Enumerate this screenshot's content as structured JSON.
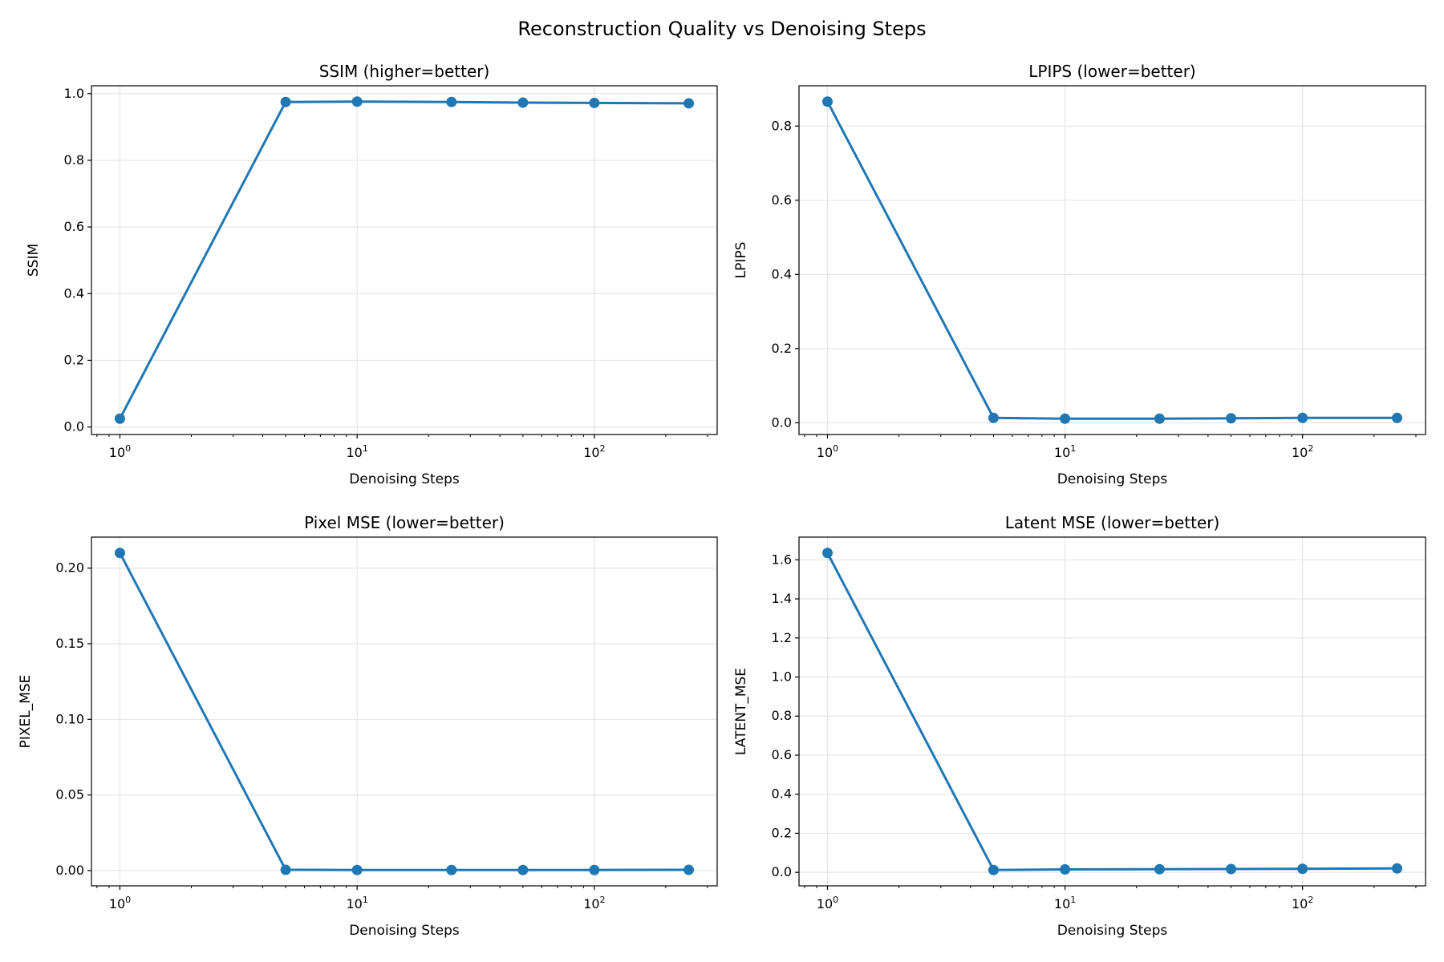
{
  "figure": {
    "title": "Reconstruction Quality vs Denoising Steps"
  },
  "colors": {
    "series": "#1f77b4",
    "grid": "#e5e5e5",
    "axes": "#000000"
  },
  "chart_data": [
    {
      "type": "line",
      "title": "SSIM (higher=better)",
      "xlabel": "Denoising Steps",
      "ylabel": "SSIM",
      "xscale": "log",
      "x": [
        1,
        5,
        10,
        25,
        50,
        100,
        250
      ],
      "values": [
        0.025,
        0.975,
        0.976,
        0.975,
        0.973,
        0.972,
        0.971
      ],
      "yticks": [
        0.0,
        0.2,
        0.4,
        0.6,
        0.8,
        1.0
      ],
      "ytick_labels": [
        "0.0",
        "0.2",
        "0.4",
        "0.6",
        "0.8",
        "1.0"
      ],
      "xticks": [
        1,
        10,
        100
      ],
      "xtick_labels": [
        "10^0",
        "10^1",
        "10^2"
      ],
      "grid": true,
      "marker": "circle"
    },
    {
      "type": "line",
      "title": "LPIPS (lower=better)",
      "xlabel": "Denoising Steps",
      "ylabel": "LPIPS",
      "xscale": "log",
      "x": [
        1,
        5,
        10,
        25,
        50,
        100,
        250
      ],
      "values": [
        0.866,
        0.013,
        0.011,
        0.011,
        0.012,
        0.013,
        0.013
      ],
      "yticks": [
        0.0,
        0.2,
        0.4,
        0.6,
        0.8
      ],
      "ytick_labels": [
        "0.0",
        "0.2",
        "0.4",
        "0.6",
        "0.8"
      ],
      "xticks": [
        1,
        10,
        100
      ],
      "xtick_labels": [
        "10^0",
        "10^1",
        "10^2"
      ],
      "grid": true,
      "marker": "circle"
    },
    {
      "type": "line",
      "title": "Pixel MSE (lower=better)",
      "xlabel": "Denoising Steps",
      "ylabel": "PIXEL_MSE",
      "xscale": "log",
      "x": [
        1,
        5,
        10,
        25,
        50,
        100,
        250
      ],
      "values": [
        0.21,
        0.0005,
        0.0004,
        0.0004,
        0.0004,
        0.0004,
        0.0005
      ],
      "yticks": [
        0.0,
        0.05,
        0.1,
        0.15,
        0.2
      ],
      "ytick_labels": [
        "0.00",
        "0.05",
        "0.10",
        "0.15",
        "0.20"
      ],
      "xticks": [
        1,
        10,
        100
      ],
      "xtick_labels": [
        "10^0",
        "10^1",
        "10^2"
      ],
      "grid": true,
      "marker": "circle"
    },
    {
      "type": "line",
      "title": "Latent MSE (lower=better)",
      "xlabel": "Denoising Steps",
      "ylabel": "LATENT_MSE",
      "xscale": "log",
      "x": [
        1,
        5,
        10,
        25,
        50,
        100,
        250
      ],
      "values": [
        1.635,
        0.012,
        0.015,
        0.016,
        0.017,
        0.018,
        0.02
      ],
      "yticks": [
        0.0,
        0.2,
        0.4,
        0.6,
        0.8,
        1.0,
        1.2,
        1.4,
        1.6
      ],
      "ytick_labels": [
        "0.0",
        "0.2",
        "0.4",
        "0.6",
        "0.8",
        "1.0",
        "1.2",
        "1.4",
        "1.6"
      ],
      "xticks": [
        1,
        10,
        100
      ],
      "xtick_labels": [
        "10^0",
        "10^1",
        "10^2"
      ],
      "grid": true,
      "marker": "circle"
    }
  ]
}
